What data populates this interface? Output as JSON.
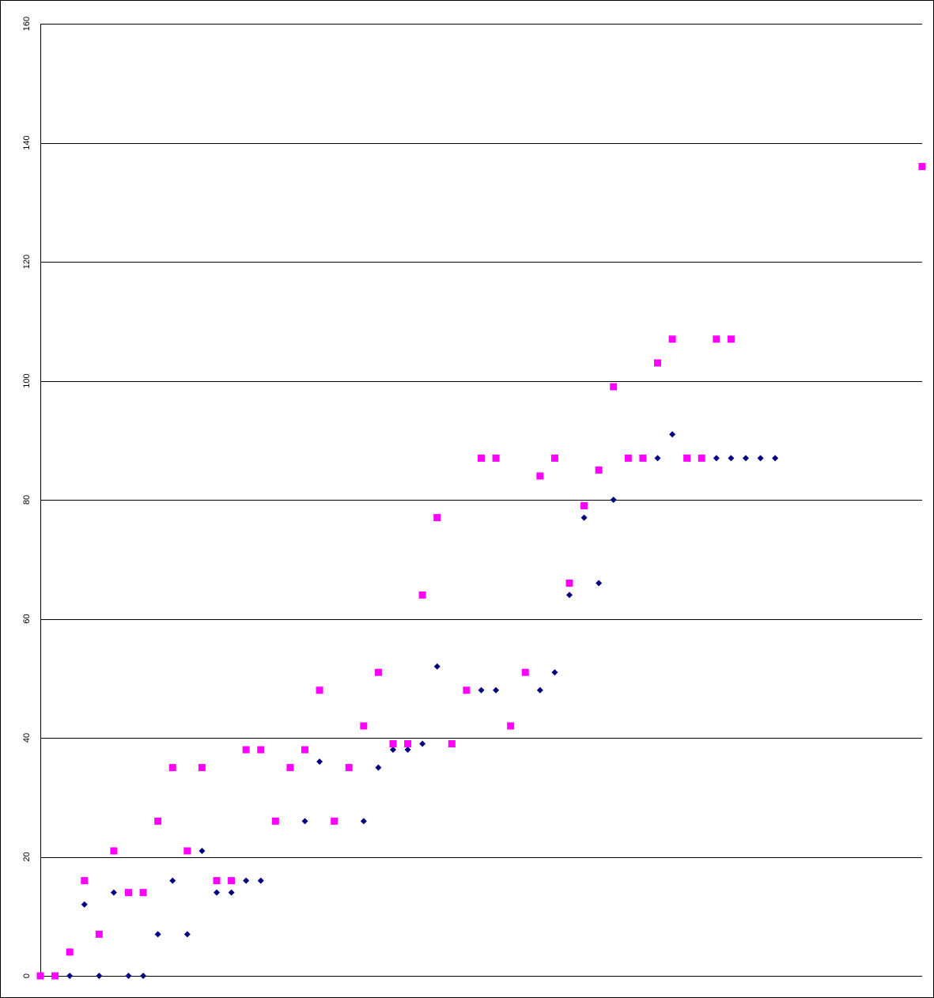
{
  "chart_data": {
    "type": "scatter",
    "title": "",
    "xlabel": "",
    "ylabel": "",
    "ylim": [
      0,
      160
    ],
    "xlim": [
      0,
      60
    ],
    "y_ticks": [
      "0",
      "20",
      "40",
      "60",
      "80",
      "100",
      "120",
      "140",
      "160"
    ],
    "grid": true,
    "legend": "none",
    "series": [
      {
        "marker": "diamond",
        "color": "#000080",
        "x": [
          0,
          1,
          2,
          3,
          4,
          5,
          6,
          7,
          8,
          9,
          10,
          11,
          12,
          13,
          14,
          15,
          16,
          17,
          18,
          19,
          20,
          21,
          22,
          23,
          24,
          25,
          26,
          27,
          28,
          29,
          30,
          31,
          32,
          33,
          34,
          35,
          36,
          37,
          38,
          39,
          40,
          41,
          42,
          43,
          44,
          45,
          46,
          47,
          48,
          49,
          50
        ],
        "y": [
          0,
          0,
          0,
          12,
          0,
          14,
          0,
          0,
          7,
          16,
          7,
          21,
          14,
          14,
          16,
          16,
          26,
          35,
          26,
          36,
          26,
          35,
          26,
          35,
          38,
          38,
          39,
          52,
          39,
          48,
          48,
          48,
          42,
          51,
          48,
          51,
          64,
          77,
          66,
          80,
          87,
          87,
          87,
          91,
          87,
          87,
          87,
          87,
          87,
          87,
          87
        ]
      },
      {
        "marker": "square",
        "color": "#FF00FF",
        "x": [
          0,
          1,
          2,
          3,
          4,
          5,
          6,
          7,
          8,
          9,
          10,
          11,
          12,
          13,
          14,
          15,
          16,
          17,
          18,
          19,
          20,
          21,
          22,
          23,
          24,
          25,
          26,
          27,
          28,
          29,
          30,
          31,
          32,
          33,
          34,
          35,
          36,
          37,
          38,
          39,
          40,
          41,
          42,
          43,
          44,
          45,
          46,
          47,
          60
        ],
        "y": [
          0,
          0,
          4,
          16,
          7,
          21,
          14,
          14,
          26,
          35,
          21,
          35,
          16,
          16,
          38,
          38,
          26,
          35,
          38,
          48,
          26,
          35,
          42,
          51,
          39,
          39,
          64,
          77,
          39,
          48,
          87,
          87,
          42,
          51,
          84,
          87,
          66,
          79,
          85,
          99,
          87,
          87,
          103,
          107,
          87,
          87,
          107,
          107,
          136
        ]
      }
    ]
  }
}
